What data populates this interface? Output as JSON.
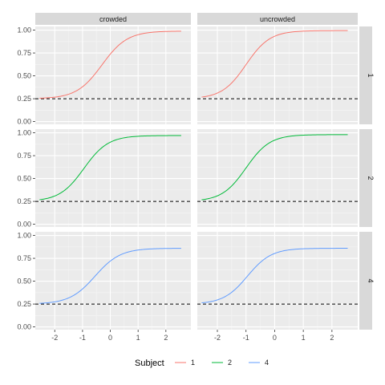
{
  "chart_data": {
    "type": "line",
    "columns": [
      "crowded",
      "uncrowded"
    ],
    "rows": [
      "1",
      "2",
      "4"
    ],
    "xlim": [
      -2.7,
      2.9
    ],
    "ylim": [
      -0.03,
      1.04
    ],
    "x_ticks": [
      -2,
      -1,
      0,
      1,
      2
    ],
    "y_ticks": [
      0.0,
      0.25,
      0.5,
      0.75,
      1.0
    ],
    "y_tick_labels": [
      "0.00",
      "0.25",
      "0.50",
      "0.75",
      "1.00"
    ],
    "reference_line_y": 0.25,
    "x_range": [
      -2.55,
      2.55
    ],
    "legend": {
      "title": "Subject",
      "position": "bottom",
      "entries": [
        {
          "label": "1",
          "color": "#F8766D"
        },
        {
          "label": "2",
          "color": "#00BA38"
        },
        {
          "label": "4",
          "color": "#619CFF"
        }
      ]
    },
    "panels": [
      {
        "row": "1",
        "column": "crowded",
        "subject": "1",
        "color": "#F8766D",
        "guess": 0.25,
        "lapse": 0.01,
        "threshold": -0.3,
        "slope": 2.2
      },
      {
        "row": "1",
        "column": "uncrowded",
        "subject": "1",
        "color": "#F8766D",
        "guess": 0.25,
        "lapse": 0.005,
        "threshold": -1.0,
        "slope": 2.4
      },
      {
        "row": "2",
        "column": "crowded",
        "subject": "2",
        "color": "#00BA38",
        "guess": 0.25,
        "lapse": 0.03,
        "threshold": -0.95,
        "slope": 2.3
      },
      {
        "row": "2",
        "column": "uncrowded",
        "subject": "2",
        "color": "#00BA38",
        "guess": 0.25,
        "lapse": 0.02,
        "threshold": -1.0,
        "slope": 2.4
      },
      {
        "row": "4",
        "column": "crowded",
        "subject": "4",
        "color": "#619CFF",
        "guess": 0.25,
        "lapse": 0.14,
        "threshold": -0.55,
        "slope": 2.2
      },
      {
        "row": "4",
        "column": "uncrowded",
        "subject": "4",
        "color": "#619CFF",
        "guess": 0.25,
        "lapse": 0.14,
        "threshold": -0.95,
        "slope": 2.4
      }
    ]
  }
}
